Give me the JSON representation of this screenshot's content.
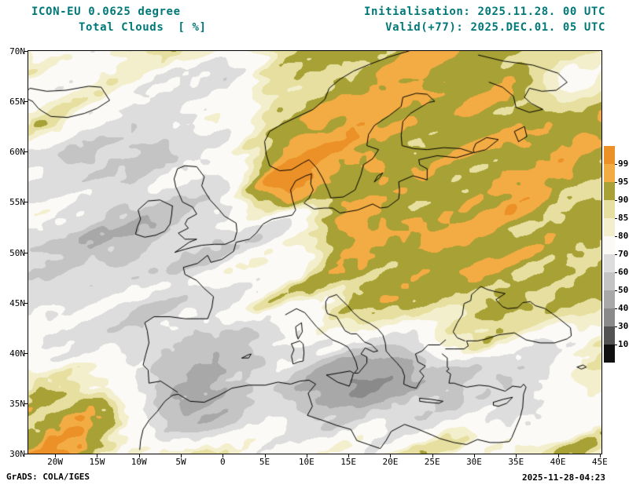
{
  "header": {
    "model_line": "ICON-EU 0.0625 degree",
    "variable_line": "Total Clouds  [ %]",
    "init_line": "Initialisation: 2025.11.28. 00 UTC",
    "valid_line": "Valid(+77): 2025.DEC.01. 05 UTC",
    "title_color": "#007878"
  },
  "map": {
    "lon_ticks": [
      "20W",
      "15W",
      "10W",
      "5W",
      "0",
      "5E",
      "10E",
      "15E",
      "20E",
      "25E",
      "30E",
      "35E",
      "40E",
      "45E"
    ],
    "lon_values": [
      -20,
      -15,
      -10,
      -5,
      0,
      5,
      10,
      15,
      20,
      25,
      30,
      35,
      40,
      45
    ],
    "lat_ticks": [
      "70N",
      "65N",
      "60N",
      "55N",
      "50N",
      "45N",
      "40N",
      "35N",
      "30N"
    ],
    "lat_values": [
      70,
      65,
      60,
      55,
      50,
      45,
      40,
      35,
      30
    ],
    "lon_range": [
      -23.2,
      45.2
    ],
    "lat_range": [
      30,
      70
    ]
  },
  "colorbar": {
    "labels": [
      "99.5",
      "95",
      "90",
      "85",
      "80",
      "70",
      "60",
      "50",
      "40",
      "30",
      "10"
    ],
    "colors_top_to_bottom": [
      "#ec9127",
      "#f3ac43",
      "#a8a135",
      "#e6df9f",
      "#f3efcd",
      "#fbfaf6",
      "#dddddd",
      "#c4c4c4",
      "#a8a8a8",
      "#8a8a8a",
      "#525252",
      "#101010"
    ]
  },
  "cloud_field": {
    "description": "Total cloud cover percent field: dominant olive (90-95%) over Scandinavia, Baltic and eastern Europe; orange streaks (95-100%) SW-NE across the Atlantic, Biscay and North Sea; broken gray/white areas (30-80%) over the west Atlantic, Iberia, western and central Mediterranean, Balkans and Turkey.",
    "base_percent": 88,
    "east_percent": 93.5,
    "thresholds": [
      99.5,
      95,
      90,
      85,
      80,
      70,
      60,
      50,
      40,
      30,
      10
    ],
    "regions": [
      {
        "name": "atlantic-gray",
        "u": 0.12,
        "v": 0.52,
        "ru": 0.16,
        "rv": 0.22,
        "delta": -26
      },
      {
        "name": "biscay-gray",
        "u": 0.28,
        "v": 0.5,
        "ru": 0.1,
        "rv": 0.12,
        "delta": -14
      },
      {
        "name": "iberia-gray",
        "u": 0.29,
        "v": 0.8,
        "ru": 0.12,
        "rv": 0.1,
        "delta": -18
      },
      {
        "name": "alboran-dark",
        "u": 0.3,
        "v": 0.89,
        "ru": 0.06,
        "rv": 0.05,
        "delta": -30
      },
      {
        "name": "west-med-gray",
        "u": 0.45,
        "v": 0.82,
        "ru": 0.1,
        "rv": 0.1,
        "delta": -16
      },
      {
        "name": "italy-gray",
        "u": 0.57,
        "v": 0.84,
        "ru": 0.08,
        "rv": 0.1,
        "delta": -22
      },
      {
        "name": "balkan-gray",
        "u": 0.68,
        "v": 0.8,
        "ru": 0.07,
        "rv": 0.09,
        "delta": -24
      },
      {
        "name": "turkey-south-gray",
        "u": 0.85,
        "v": 0.82,
        "ru": 0.12,
        "rv": 0.1,
        "delta": -20
      },
      {
        "name": "nw-atlantic-gray",
        "u": 0.2,
        "v": 0.15,
        "ru": 0.13,
        "rv": 0.13,
        "delta": -14
      },
      {
        "name": "norwegian-sea-gray",
        "u": 0.42,
        "v": 0.07,
        "ru": 0.09,
        "rv": 0.07,
        "delta": -14
      },
      {
        "name": "top-right-gray",
        "u": 0.95,
        "v": 0.06,
        "ru": 0.06,
        "rv": 0.06,
        "delta": -34
      },
      {
        "name": "france-mottle",
        "u": 0.38,
        "v": 0.44,
        "ru": 0.09,
        "rv": 0.1,
        "delta": -10
      },
      {
        "name": "alps-white",
        "u": 0.47,
        "v": 0.47,
        "ru": 0.05,
        "rv": 0.06,
        "delta": -14
      },
      {
        "name": "bottom-left-orange",
        "u": 0.05,
        "v": 0.92,
        "ru": 0.09,
        "rv": 0.1,
        "delta": 9
      },
      {
        "name": "north-sea-orange",
        "u": 0.45,
        "v": 0.33,
        "ru": 0.07,
        "rv": 0.09,
        "delta": 7
      },
      {
        "name": "top-left-orange",
        "u": 0.04,
        "v": 0.06,
        "ru": 0.07,
        "rv": 0.07,
        "delta": 6
      }
    ],
    "streak": {
      "from_u": 0.06,
      "from_v": 0.97,
      "to_u": 0.52,
      "to_v": 0.2,
      "width": 0.07,
      "delta": 8
    }
  },
  "footer": {
    "left": "GrADS: COLA/IGES",
    "right": "2025-11-28-04:23"
  }
}
